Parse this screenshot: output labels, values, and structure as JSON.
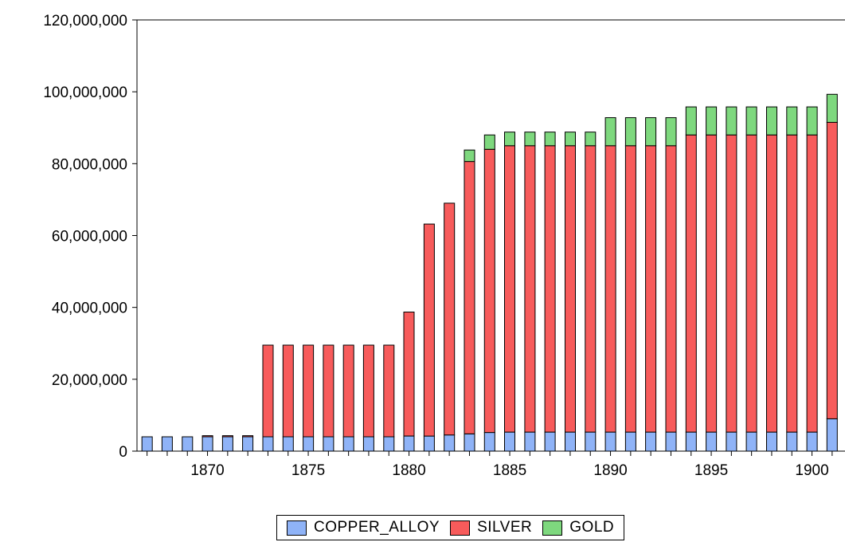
{
  "chart_data": {
    "type": "bar",
    "stacked": true,
    "x": [
      1867,
      1868,
      1869,
      1870,
      1871,
      1872,
      1873,
      1874,
      1875,
      1876,
      1877,
      1878,
      1879,
      1880,
      1881,
      1882,
      1883,
      1884,
      1885,
      1886,
      1887,
      1888,
      1889,
      1890,
      1891,
      1892,
      1893,
      1894,
      1895,
      1896,
      1897,
      1898,
      1899,
      1900,
      1901
    ],
    "x_tick_labels": [
      "1870",
      "1875",
      "1880",
      "1885",
      "1890",
      "1895",
      "1900"
    ],
    "x_tick_values": [
      1870,
      1875,
      1880,
      1885,
      1890,
      1895,
      1900
    ],
    "y_tick_labels": [
      "0",
      "20,000,000",
      "40,000,000",
      "60,000,000",
      "80,000,000",
      "100,000,000",
      "120,000,000"
    ],
    "y_tick_values": [
      0,
      20000000,
      40000000,
      60000000,
      80000000,
      100000000,
      120000000
    ],
    "ylim": [
      0,
      120000000
    ],
    "grid": false,
    "legend_position": "bottom",
    "series": [
      {
        "name": "COPPER_ALLOY",
        "color": "#8fb3f7",
        "values": [
          4000000,
          4000000,
          4000000,
          4000000,
          4000000,
          4000000,
          4000000,
          4000000,
          4000000,
          4000000,
          4000000,
          4000000,
          4000000,
          4200000,
          4200000,
          4500000,
          4800000,
          5200000,
          5300000,
          5300000,
          5300000,
          5300000,
          5300000,
          5300000,
          5300000,
          5300000,
          5300000,
          5300000,
          5300000,
          5300000,
          5300000,
          5300000,
          5300000,
          5300000,
          9000000
        ]
      },
      {
        "name": "SILVER",
        "color": "#f75b5b",
        "values": [
          0,
          0,
          0,
          300000,
          300000,
          300000,
          25500000,
          25500000,
          25500000,
          25500000,
          25500000,
          25500000,
          25500000,
          34500000,
          59000000,
          64500000,
          75800000,
          78800000,
          79700000,
          79700000,
          79700000,
          79700000,
          79700000,
          79700000,
          79700000,
          79700000,
          79700000,
          82700000,
          82700000,
          82700000,
          82700000,
          82700000,
          82700000,
          82700000,
          82500000
        ]
      },
      {
        "name": "GOLD",
        "color": "#7ed87e",
        "values": [
          0,
          0,
          0,
          0,
          0,
          0,
          0,
          0,
          0,
          0,
          0,
          0,
          0,
          0,
          0,
          0,
          3200000,
          4000000,
          3800000,
          3800000,
          3800000,
          3800000,
          3800000,
          7800000,
          7800000,
          7800000,
          7800000,
          7800000,
          7800000,
          7800000,
          7800000,
          7800000,
          7800000,
          7800000,
          7800000
        ]
      }
    ]
  }
}
